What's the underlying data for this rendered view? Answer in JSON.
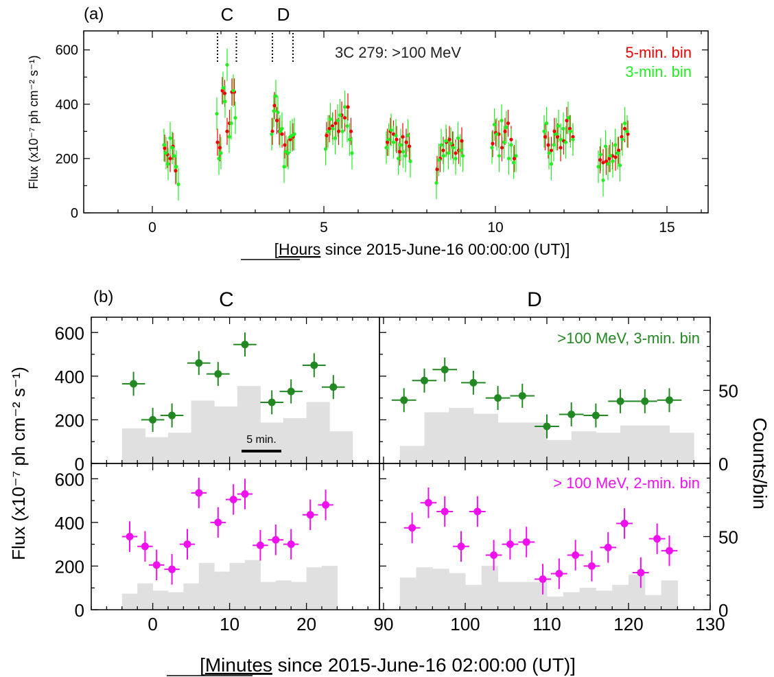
{
  "panel_a": {
    "label": "(a)",
    "marker_c": "C",
    "marker_d": "D",
    "annotation": "3C 279: >100 MeV",
    "legend": [
      {
        "text": "5-min. bin",
        "color": "#ee0000"
      },
      {
        "text": "3-min. bin",
        "color": "#22ee22"
      }
    ],
    "ylabel": "Flux (x10⁻⁷ ph cm⁻² s⁻¹)",
    "xlabel_prefix": "[",
    "xlabel_underlined": "Hours",
    "xlabel_rest": " since 2015-June-16 00:00:00 (UT)]"
  },
  "panel_b": {
    "label": "(b)",
    "col_c": "C",
    "col_d": "D",
    "green_label": ">100 MeV, 3-min. bin",
    "magenta_label": "> 100 MeV, 2-min. bin",
    "scale_bar": "5 min.",
    "ylabel": "Flux (x10⁻⁷ ph cm⁻² s⁻¹)",
    "right_ylabel": "Counts/bin",
    "xlabel_prefix": "[",
    "xlabel_underlined": "Minutes",
    "xlabel_rest": " since 2015-June-16 02:00:00 (UT)]"
  },
  "colors": {
    "green3": "#22ee22",
    "red5": "#ee0000",
    "darkgreen": "#228822",
    "magenta": "#ee11ee",
    "counts": "#e0e0e0"
  },
  "chart_data": [
    {
      "id": "panel-a",
      "type": "scatter",
      "title": "3C 279: >100 MeV",
      "xlabel": "[Hours since 2015-June-16 00:00:00 (UT)]",
      "ylabel": "Flux (x10⁻⁷ ph cm⁻² s⁻¹)",
      "xlim": [
        -2.0,
        16.2
      ],
      "ylim": [
        0,
        670
      ],
      "xticks": [
        0,
        5,
        10,
        15
      ],
      "yticks": [
        0,
        200,
        400,
        600
      ],
      "marker_lines": [
        1.9,
        2.45,
        3.5,
        4.1
      ],
      "series": [
        {
          "name": "5-min. bin",
          "color": "#ee0000",
          "err": 50,
          "x": [
            0.36,
            0.44,
            0.52,
            0.6,
            0.68,
            1.9,
            1.97,
            2.04,
            2.11,
            2.18,
            2.25,
            2.32,
            2.39,
            3.5,
            3.56,
            3.63,
            3.7,
            3.78,
            3.86,
            3.94,
            4.02,
            4.1,
            5.08,
            5.16,
            5.25,
            5.34,
            5.43,
            5.52,
            5.61,
            5.7,
            5.79,
            6.85,
            6.94,
            7.03,
            7.12,
            7.21,
            7.3,
            7.4,
            7.49,
            8.3,
            8.39,
            8.48,
            8.57,
            8.66,
            8.75,
            8.84,
            8.93,
            9.02,
            9.92,
            10.01,
            10.1,
            10.19,
            10.28,
            10.37,
            10.46,
            10.55,
            11.45,
            11.54,
            11.63,
            11.72,
            11.81,
            11.9,
            11.99,
            12.08,
            12.17,
            12.26,
            13.05,
            13.14,
            13.23,
            13.32,
            13.41,
            13.5,
            13.59,
            13.68,
            13.77,
            13.86
          ],
          "y": [
            238,
            215,
            200,
            245,
            155,
            260,
            240,
            450,
            440,
            300,
            330,
            445,
            445,
            300,
            395,
            340,
            300,
            290,
            250,
            220,
            270,
            280,
            285,
            310,
            320,
            330,
            300,
            360,
            350,
            390,
            300,
            260,
            300,
            290,
            270,
            225,
            280,
            260,
            245,
            160,
            200,
            230,
            260,
            270,
            250,
            220,
            230,
            265,
            255,
            295,
            290,
            240,
            300,
            330,
            270,
            200,
            280,
            250,
            230,
            300,
            280,
            240,
            265,
            340,
            310,
            280,
            195,
            185,
            190,
            200,
            210,
            205,
            230,
            280,
            310,
            290
          ]
        },
        {
          "name": "3-min. bin",
          "color": "#22ee22",
          "err": 60,
          "x": [
            0.34,
            0.4,
            0.46,
            0.52,
            0.58,
            0.64,
            0.7,
            0.76,
            1.88,
            1.94,
            2.0,
            2.06,
            2.12,
            2.18,
            2.24,
            2.3,
            2.36,
            2.42,
            3.48,
            3.54,
            3.6,
            3.66,
            3.72,
            3.78,
            3.84,
            3.9,
            3.96,
            4.02,
            4.08,
            4.14,
            5.05,
            5.12,
            5.19,
            5.26,
            5.33,
            5.4,
            5.47,
            5.54,
            5.61,
            5.68,
            5.75,
            5.82,
            6.82,
            6.89,
            6.96,
            7.03,
            7.1,
            7.17,
            7.24,
            7.31,
            7.38,
            7.45,
            7.52,
            8.28,
            8.35,
            8.42,
            8.49,
            8.56,
            8.63,
            8.7,
            8.77,
            8.84,
            8.91,
            8.98,
            9.05,
            9.9,
            9.97,
            10.04,
            10.11,
            10.18,
            10.25,
            10.32,
            10.39,
            10.46,
            10.53,
            10.6,
            11.42,
            11.49,
            11.56,
            11.63,
            11.7,
            11.77,
            11.84,
            11.91,
            11.98,
            12.05,
            12.12,
            12.19,
            12.26,
            13.0,
            13.07,
            13.14,
            13.21,
            13.28,
            13.35,
            13.42,
            13.49,
            13.56,
            13.63,
            13.7,
            13.77,
            13.84
          ],
          "y": [
            250,
            220,
            180,
            275,
            240,
            210,
            170,
            105,
            365,
            200,
            220,
            460,
            410,
            545,
            280,
            330,
            450,
            350,
            290,
            375,
            430,
            370,
            300,
            310,
            170,
            225,
            220,
            280,
            285,
            290,
            235,
            300,
            345,
            310,
            275,
            340,
            360,
            300,
            390,
            320,
            270,
            220,
            240,
            270,
            305,
            260,
            285,
            200,
            250,
            225,
            210,
            285,
            190,
            110,
            195,
            250,
            210,
            265,
            220,
            255,
            240,
            200,
            275,
            230,
            210,
            240,
            325,
            290,
            210,
            340,
            260,
            315,
            200,
            250,
            185,
            210,
            300,
            330,
            220,
            180,
            250,
            290,
            320,
            270,
            310,
            260,
            350,
            300,
            270,
            170,
            215,
            120,
            245,
            180,
            210,
            190,
            250,
            220,
            175,
            270,
            330,
            300
          ]
        }
      ]
    },
    {
      "id": "panel-b-top-left",
      "type": "scatter",
      "xlim": [
        -8,
        29.5
      ],
      "ylim": [
        0,
        670
      ],
      "counts_bar_width": 3,
      "counts_x": [
        -4,
        -1,
        2,
        5,
        8,
        11,
        14,
        17,
        20,
        23
      ],
      "counts_values": [
        24,
        18,
        21,
        43,
        39,
        53,
        28,
        31,
        42,
        22
      ],
      "series": [
        {
          "name": ">100 MeV, 3-min. bin",
          "color": "#228822",
          "xerr": 1.5,
          "yerr": 55,
          "x": [
            -2.5,
            0.0,
            2.5,
            6.0,
            8.5,
            12.0,
            15.5,
            18.0,
            21.0,
            23.5
          ],
          "y": [
            365,
            200,
            220,
            460,
            410,
            545,
            280,
            330,
            450,
            350
          ]
        }
      ]
    },
    {
      "id": "panel-b-top-right",
      "type": "scatter",
      "xlim": [
        89.5,
        130
      ],
      "ylim": [
        0,
        670
      ],
      "counts_bar_width": 3,
      "counts_x": [
        92,
        95,
        98,
        101,
        104,
        107,
        110,
        113,
        116,
        119,
        122,
        125
      ],
      "counts_values": [
        12,
        35,
        38,
        34,
        28,
        28,
        16,
        22,
        21,
        26,
        26,
        21
      ],
      "series": [
        {
          "name": ">100 MeV, 3-min. bin",
          "color": "#228822",
          "xerr": 1.5,
          "yerr": 55,
          "x": [
            92.5,
            95.0,
            97.5,
            101.0,
            104.0,
            107.0,
            110.0,
            113.0,
            116.0,
            119.0,
            122.0,
            125.0
          ],
          "y": [
            290,
            380,
            430,
            370,
            300,
            310,
            170,
            225,
            220,
            285,
            285,
            290
          ]
        }
      ]
    },
    {
      "id": "panel-b-bottom-left",
      "type": "scatter",
      "xlim": [
        -8,
        29.5
      ],
      "ylim": [
        0,
        670
      ],
      "xlabel": "[Minutes since 2015-June-16 02:00:00 (UT)]",
      "xticks": [
        0,
        10,
        20
      ],
      "counts_bar_width": 2,
      "counts_x": [
        -4,
        -2,
        0,
        2,
        4,
        6,
        8,
        10,
        12,
        14,
        16,
        18,
        20,
        22
      ],
      "counts_values": [
        11,
        18,
        13,
        12,
        18,
        32,
        26,
        32,
        34,
        19,
        20,
        19,
        29,
        30
      ],
      "series": [
        {
          "name": "> 100 MeV, 2-min. bin",
          "color": "#ee11ee",
          "xerr": 1.0,
          "yerr": 70,
          "x": [
            -3.0,
            -1.0,
            0.5,
            2.5,
            4.5,
            6.0,
            8.5,
            10.5,
            12.0,
            14.0,
            16.0,
            18.0,
            20.5,
            22.5
          ],
          "y": [
            335,
            290,
            205,
            185,
            300,
            535,
            400,
            505,
            530,
            295,
            320,
            300,
            435,
            480
          ]
        }
      ]
    },
    {
      "id": "panel-b-bottom-right",
      "type": "scatter",
      "xlim": [
        89.5,
        130
      ],
      "ylim": [
        0,
        670
      ],
      "xticks": [
        90,
        100,
        110,
        120,
        130
      ],
      "counts_bar_width": 2,
      "counts_x": [
        92,
        94,
        96,
        98,
        100,
        102,
        104,
        106,
        108,
        110,
        112,
        114,
        116,
        118,
        120,
        122,
        124
      ],
      "counts_values": [
        22,
        29,
        28,
        25,
        17,
        30,
        19,
        19,
        19,
        9,
        12,
        15,
        13,
        17,
        24,
        10,
        20
      ],
      "series": [
        {
          "name": "> 100 MeV, 2-min. bin",
          "color": "#ee11ee",
          "xerr": 1.0,
          "yerr": 70,
          "x": [
            93.5,
            95.5,
            97.5,
            99.5,
            101.5,
            103.5,
            105.5,
            107.5,
            109.5,
            111.5,
            113.5,
            115.5,
            117.5,
            119.5,
            121.5,
            123.5,
            125.0
          ],
          "y": [
            375,
            490,
            450,
            290,
            450,
            250,
            300,
            310,
            140,
            165,
            250,
            200,
            285,
            395,
            170,
            325,
            270
          ]
        }
      ]
    }
  ]
}
